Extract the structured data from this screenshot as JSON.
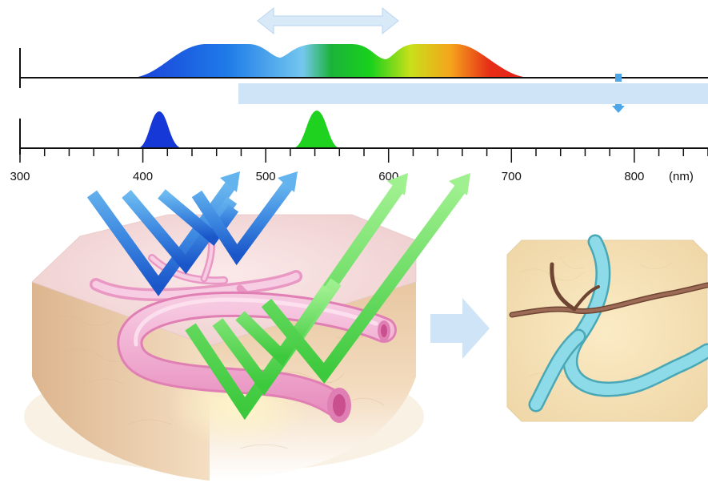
{
  "axis": {
    "unit_label": "(nm)",
    "ticks": [
      {
        "value": 300,
        "label": "300"
      },
      {
        "value": 400,
        "label": "400"
      },
      {
        "value": 500,
        "label": "500"
      },
      {
        "value": 600,
        "label": "600"
      },
      {
        "value": 700,
        "label": "700"
      },
      {
        "value": 800,
        "label": "800"
      }
    ],
    "range": [
      300,
      860
    ],
    "minor_step": 20
  },
  "spectra": {
    "white_light": {
      "range_nm": [
        390,
        712
      ],
      "colors": [
        "#1a3fd9",
        "#1e7be8",
        "#74c7ee",
        "#1bb33a",
        "#19d11c",
        "#c8e01a",
        "#f5a51c",
        "#e62d16",
        "#e3201a"
      ]
    },
    "narrow_band": [
      {
        "name": "blue",
        "center_nm": 415,
        "color": "#1538d6"
      },
      {
        "name": "green",
        "center_nm": 540,
        "color": "#1fd21f"
      }
    ]
  },
  "colors": {
    "blue_light": "#4ea6ea",
    "dark_blue_light": "#1b56c9",
    "green_light": "#5fd95f",
    "bright_green": "#98f08a",
    "vessel_pink": "#f3b3d6",
    "pale_highlight": "#cfe4f7",
    "output_vessel_cyan": "#8ddbe8",
    "output_vessel_brown": "#8a5a45",
    "tissue": "#f3d8b5"
  },
  "icons": [
    "double-arrow-icon",
    "down-arrow-icon",
    "right-arrow-icon"
  ]
}
